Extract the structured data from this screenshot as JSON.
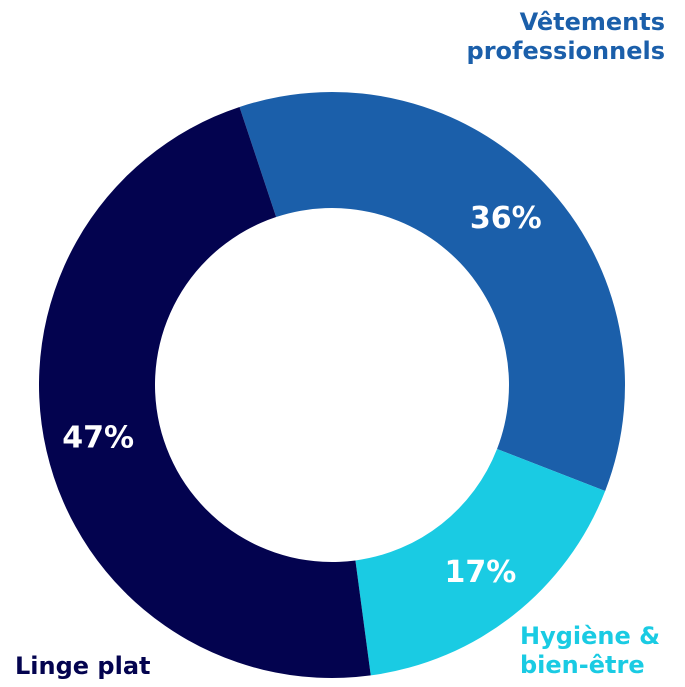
{
  "chart_data": {
    "type": "donut",
    "categories": [
      "Vêtements professionnels",
      "Hygiène & bien-être",
      "Linge plat"
    ],
    "values": [
      36,
      17,
      47
    ],
    "value_labels": [
      "36%",
      "17%",
      "47%"
    ],
    "colors": [
      "#1b5faa",
      "#1acbe3",
      "#03034f"
    ]
  }
}
